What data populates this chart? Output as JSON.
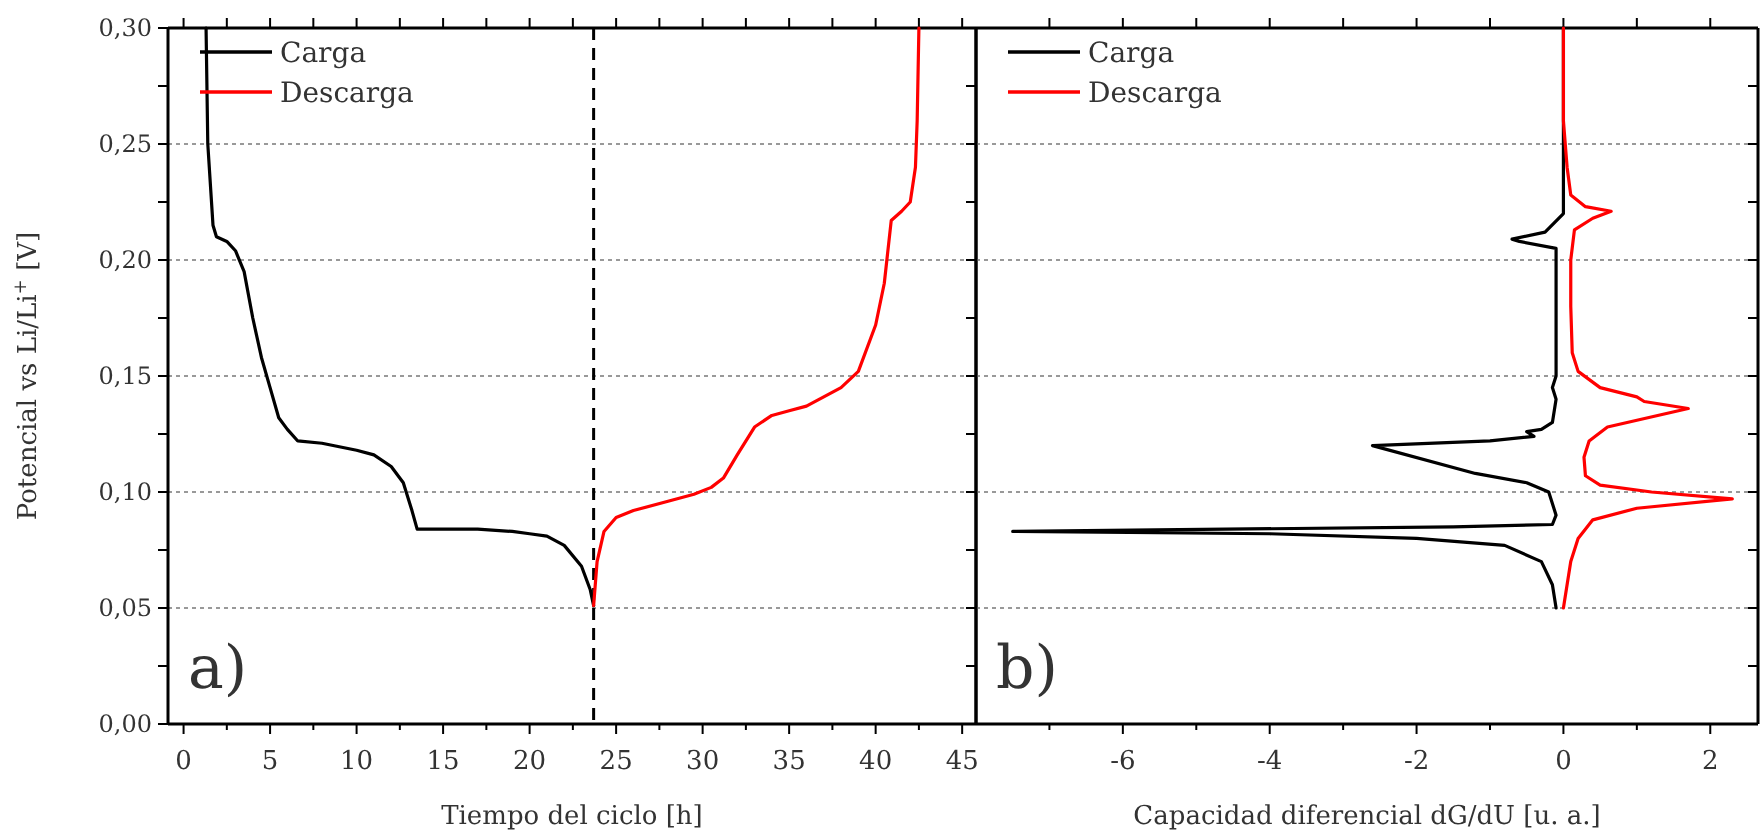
{
  "chart_data": [
    {
      "type": "line",
      "xlabel": "Tiempo del ciclo [h]",
      "ylabel": "Potencial vs Li/Li$^{+}$ [V]",
      "xlim": [
        -0.9,
        45.8
      ],
      "ylim": [
        0,
        0.3
      ],
      "xticks": [
        0,
        {
          "value": 2.5,
          "label": null
        },
        5,
        {
          "value": 7.5,
          "label": null
        },
        10,
        {
          "value": 12.5,
          "label": null
        },
        15,
        {
          "value": 17.5,
          "label": null
        },
        20,
        {
          "value": 22.5,
          "label": null
        },
        25,
        {
          "value": 27.5,
          "label": null
        },
        30,
        {
          "value": 32.5,
          "label": null
        },
        35,
        {
          "value": 37.5,
          "label": null
        },
        40,
        {
          "value": 42.5,
          "label": null
        },
        45
      ],
      "yticks": [
        {
          "value": 0,
          "label": "0,00"
        },
        {
          "value": 0.025,
          "label": null
        },
        {
          "value": 0.05,
          "label": "0,05"
        },
        {
          "value": 0.075,
          "label": null
        },
        {
          "value": 0.1,
          "label": "0,10"
        },
        {
          "value": 0.125,
          "label": null
        },
        {
          "value": 0.15,
          "label": "0,15"
        },
        {
          "value": 0.175,
          "label": null
        },
        {
          "value": 0.2,
          "label": "0,20"
        },
        {
          "value": 0.225,
          "label": null
        },
        {
          "value": 0.25,
          "label": "0,25"
        },
        {
          "value": 0.275,
          "label": null
        },
        {
          "value": 0.3,
          "label": "0,30"
        }
      ],
      "grid": "y",
      "legend": "top left",
      "annotations": [
        "a)"
      ],
      "ref_lines": [
        {
          "axis": "x",
          "value": 23.7,
          "label": null,
          "color": "#000000",
          "line_style": "dashed"
        }
      ],
      "series": [
        {
          "name": "Carga",
          "color": "#000000",
          "x": [
            1.3,
            1.4,
            1.7,
            1.9,
            2.5,
            3.0,
            3.5,
            4.0,
            4.5,
            5.0,
            5.5,
            6.0,
            6.6,
            8,
            10,
            11,
            12,
            12.7,
            13.2,
            13.5,
            14,
            17,
            19,
            20,
            21,
            22,
            23,
            23.5,
            23.7
          ],
          "values": [
            0.3,
            0.25,
            0.215,
            0.21,
            0.208,
            0.204,
            0.195,
            0.175,
            0.158,
            0.145,
            0.132,
            0.127,
            0.122,
            0.121,
            0.118,
            0.116,
            0.111,
            0.104,
            0.092,
            0.084,
            0.084,
            0.084,
            0.083,
            0.082,
            0.081,
            0.077,
            0.068,
            0.058,
            0.051
          ]
        },
        {
          "name": "Descarga",
          "color": "#ff0000",
          "x": [
            23.7,
            23.9,
            24.3,
            25,
            26,
            28,
            29.5,
            30.5,
            31.2,
            32,
            33,
            34,
            35,
            36,
            37,
            38,
            39,
            40,
            40.5,
            40.9,
            41.5,
            42,
            42.3,
            42.4,
            42.5
          ],
          "values": [
            0.051,
            0.07,
            0.083,
            0.089,
            0.092,
            0.096,
            0.099,
            0.102,
            0.106,
            0.116,
            0.128,
            0.133,
            0.135,
            0.137,
            0.141,
            0.145,
            0.152,
            0.172,
            0.19,
            0.217,
            0.221,
            0.225,
            0.24,
            0.26,
            0.3
          ]
        }
      ]
    },
    {
      "type": "line",
      "xlabel": "Capacidad diferencial dG/dU [u. a.]",
      "xlim": [
        -8,
        2.65
      ],
      "ylim": [
        0,
        0.3
      ],
      "xticks": [
        {
          "value": -7,
          "label": null
        },
        -6,
        {
          "value": -5,
          "label": null
        },
        -4,
        {
          "value": -3,
          "label": null
        },
        -2,
        {
          "value": -1,
          "label": null
        },
        0,
        {
          "value": 1,
          "label": null
        },
        2
      ],
      "yticks": [
        {
          "value": 0,
          "label": null
        },
        {
          "value": 0.025,
          "label": null
        },
        {
          "value": 0.05,
          "label": null
        },
        {
          "value": 0.075,
          "label": null
        },
        {
          "value": 0.1,
          "label": null
        },
        {
          "value": 0.125,
          "label": null
        },
        {
          "value": 0.15,
          "label": null
        },
        {
          "value": 0.175,
          "label": null
        },
        {
          "value": 0.2,
          "label": null
        },
        {
          "value": 0.225,
          "label": null
        },
        {
          "value": 0.25,
          "label": null
        },
        {
          "value": 0.275,
          "label": null
        },
        {
          "value": 0.3,
          "label": null
        }
      ],
      "tick_labels": "x",
      "grid": "y",
      "legend": "top left",
      "annotations": [
        "b)"
      ],
      "series": [
        {
          "name": "Carga",
          "color": "#000000",
          "x": [
            -0.1,
            -0.15,
            -0.3,
            -0.8,
            -2,
            -4,
            -7.5,
            -1.5,
            -0.15,
            -0.1,
            -0.2,
            -0.5,
            -1.2,
            -2.6,
            -1,
            -0.4,
            -0.5,
            -0.3,
            -0.15,
            -0.1,
            -0.15,
            -0.1,
            -0.1,
            -0.1,
            -0.6,
            -0.7,
            -0.25,
            0,
            0
          ],
          "values": [
            0.05,
            0.06,
            0.07,
            0.077,
            0.08,
            0.082,
            0.083,
            0.085,
            0.086,
            0.09,
            0.1,
            0.104,
            0.108,
            0.12,
            0.122,
            0.124,
            0.126,
            0.127,
            0.13,
            0.14,
            0.145,
            0.15,
            0.19,
            0.205,
            0.208,
            0.209,
            0.212,
            0.22,
            0.3
          ]
        },
        {
          "name": "Descarga",
          "color": "#ff0000",
          "x": [
            0,
            0.05,
            0.1,
            0.2,
            0.4,
            1,
            2.3,
            1.2,
            0.5,
            0.3,
            0.28,
            0.35,
            0.6,
            1.7,
            1.1,
            1,
            0.5,
            0.2,
            0.12,
            0.1,
            0.1,
            0.15,
            0.4,
            0.65,
            0.3,
            0.1,
            0.05,
            0,
            0
          ],
          "values": [
            0.05,
            0.06,
            0.07,
            0.08,
            0.088,
            0.093,
            0.097,
            0.1,
            0.103,
            0.107,
            0.115,
            0.122,
            0.128,
            0.136,
            0.139,
            0.141,
            0.145,
            0.152,
            0.16,
            0.18,
            0.2,
            0.213,
            0.218,
            0.221,
            0.223,
            0.228,
            0.24,
            0.26,
            0.3
          ]
        }
      ]
    }
  ]
}
